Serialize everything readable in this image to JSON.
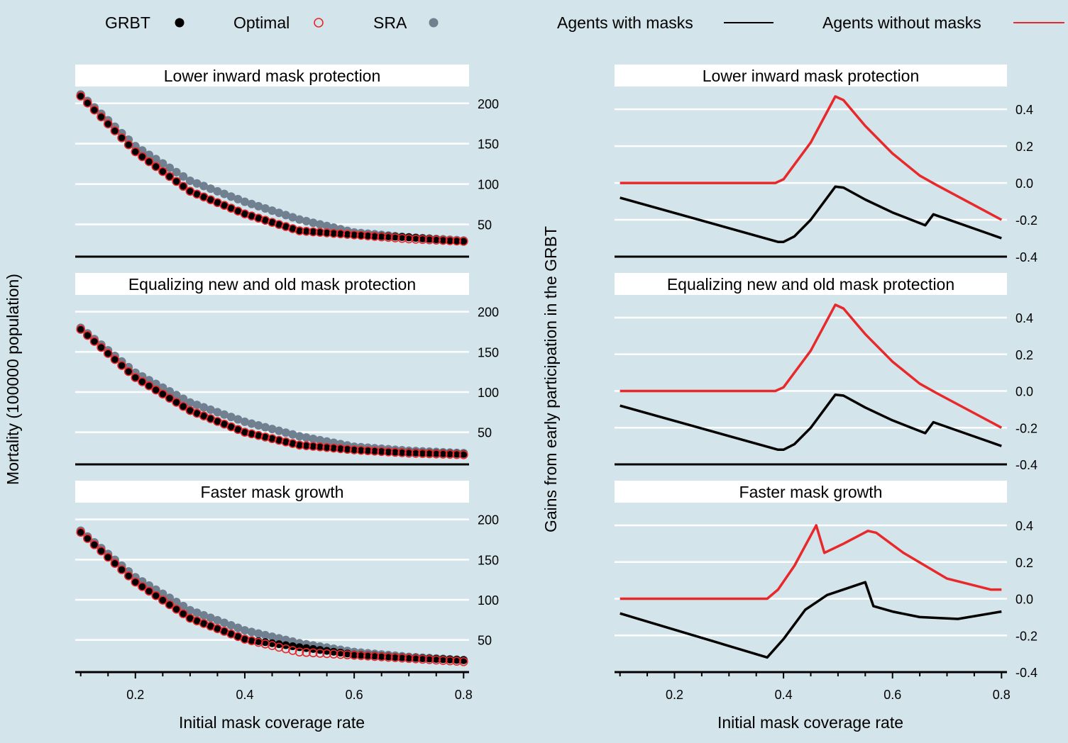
{
  "legend_left": [
    {
      "label": "GRBT",
      "color": "#000000",
      "marker": "filled-circle"
    },
    {
      "label": "Optimal",
      "color": "#e8292b",
      "marker": "open-circle"
    },
    {
      "label": "SRA",
      "color": "#708090",
      "marker": "filled-circle"
    }
  ],
  "legend_right": [
    {
      "label": "Agents with masks",
      "color": "#000000",
      "marker": "line"
    },
    {
      "label": "Agents without masks",
      "color": "#e8292b",
      "marker": "line"
    }
  ],
  "left_ylabel": "Mortality (100000 population)",
  "right_ylabel": "Gains from early participation in the GRBT",
  "xlabel": "Initial mask coverage rate",
  "chart_data": [
    {
      "type": "scatter",
      "panel": "left-1",
      "title": "Lower inward mask protection",
      "xlim": [
        0.09,
        0.81
      ],
      "ylim": [
        10,
        220
      ],
      "yticks": [
        50,
        100,
        150,
        200
      ],
      "xticks": [
        0.2,
        0.4,
        0.6,
        0.8
      ],
      "xticklabels": [
        "0.2",
        "0.4",
        "0.6",
        "0.8"
      ],
      "show_xaxis": false,
      "series": [
        {
          "name": "GRBT",
          "color": "#000000",
          "marker": "filled",
          "x": [
            0.1,
            0.2,
            0.3,
            0.4,
            0.5,
            0.6,
            0.7,
            0.8
          ],
          "y": [
            209,
            140,
            91,
            63,
            42,
            37,
            34,
            29
          ]
        },
        {
          "name": "Optimal",
          "color": "#e8292b",
          "marker": "open",
          "x": [
            0.1,
            0.2,
            0.3,
            0.4,
            0.5,
            0.6,
            0.7,
            0.8
          ],
          "y": [
            209,
            140,
            91,
            63,
            42,
            37,
            32,
            29
          ]
        },
        {
          "name": "SRA",
          "color": "#708090",
          "marker": "filled",
          "x": [
            0.1,
            0.2,
            0.3,
            0.4,
            0.5,
            0.6,
            0.7,
            0.8
          ],
          "y": [
            211,
            147,
            104,
            78,
            56,
            40,
            34,
            30
          ]
        }
      ]
    },
    {
      "type": "scatter",
      "panel": "left-2",
      "title": "Equalizing new and old mask protection",
      "xlim": [
        0.09,
        0.81
      ],
      "ylim": [
        10,
        220
      ],
      "yticks": [
        50,
        100,
        150,
        200
      ],
      "xticks": [
        0.2,
        0.4,
        0.6,
        0.8
      ],
      "xticklabels": [
        "0.2",
        "0.4",
        "0.6",
        "0.8"
      ],
      "show_xaxis": false,
      "series": [
        {
          "name": "GRBT",
          "color": "#000000",
          "marker": "filled",
          "x": [
            0.1,
            0.2,
            0.3,
            0.4,
            0.5,
            0.6,
            0.7,
            0.8
          ],
          "y": [
            178,
            118,
            77,
            50,
            34,
            28,
            25,
            23
          ]
        },
        {
          "name": "Optimal",
          "color": "#e8292b",
          "marker": "open",
          "x": [
            0.1,
            0.2,
            0.3,
            0.4,
            0.5,
            0.6,
            0.7,
            0.8
          ],
          "y": [
            178,
            118,
            77,
            50,
            34,
            28,
            24,
            22
          ]
        },
        {
          "name": "SRA",
          "color": "#708090",
          "marker": "filled",
          "x": [
            0.1,
            0.2,
            0.3,
            0.4,
            0.5,
            0.6,
            0.7,
            0.8
          ],
          "y": [
            180,
            124,
            87,
            63,
            45,
            32,
            27,
            24
          ]
        }
      ]
    },
    {
      "type": "scatter",
      "panel": "left-3",
      "title": "Faster mask growth",
      "xlim": [
        0.09,
        0.81
      ],
      "ylim": [
        10,
        220
      ],
      "yticks": [
        50,
        100,
        150,
        200
      ],
      "xticks": [
        0.2,
        0.4,
        0.6,
        0.8
      ],
      "xticklabels": [
        "0.2",
        "0.4",
        "0.6",
        "0.8"
      ],
      "show_xaxis": true,
      "series": [
        {
          "name": "GRBT",
          "color": "#000000",
          "marker": "filled",
          "x": [
            0.1,
            0.2,
            0.3,
            0.4,
            0.5,
            0.6,
            0.7,
            0.8
          ],
          "y": [
            184,
            122,
            77,
            51,
            41,
            32,
            28,
            25
          ]
        },
        {
          "name": "Optimal",
          "color": "#e8292b",
          "marker": "open",
          "x": [
            0.1,
            0.2,
            0.3,
            0.4,
            0.5,
            0.6,
            0.7,
            0.8
          ],
          "y": [
            184,
            122,
            77,
            51,
            35,
            31,
            27,
            23
          ]
        },
        {
          "name": "SRA",
          "color": "#708090",
          "marker": "filled",
          "x": [
            0.1,
            0.2,
            0.3,
            0.4,
            0.5,
            0.6,
            0.7,
            0.8
          ],
          "y": [
            186,
            128,
            87,
            62,
            46,
            35,
            29,
            25
          ]
        }
      ]
    },
    {
      "type": "line",
      "panel": "right-1",
      "title": "Lower inward mask protection",
      "xlim": [
        0.09,
        0.81
      ],
      "ylim": [
        -0.4,
        0.52
      ],
      "yticks": [
        -0.4,
        -0.2,
        0.0,
        0.2,
        0.4
      ],
      "xticks": [
        0.2,
        0.4,
        0.6,
        0.8
      ],
      "yticklabels": [
        "-0.4",
        "-0.2",
        "0.0",
        "0.2",
        "0.4"
      ],
      "xticklabels": [
        "0.2",
        "0.4",
        "0.6",
        "0.8"
      ],
      "show_xaxis": false,
      "series": [
        {
          "name": "Agents with masks",
          "color": "#000000",
          "x": [
            0.1,
            0.39,
            0.4,
            0.42,
            0.45,
            0.495,
            0.51,
            0.55,
            0.6,
            0.66,
            0.675,
            0.8
          ],
          "y": [
            -0.08,
            -0.32,
            -0.32,
            -0.29,
            -0.2,
            -0.02,
            -0.025,
            -0.09,
            -0.16,
            -0.23,
            -0.17,
            -0.3
          ]
        },
        {
          "name": "Agents without masks",
          "color": "#e8292b",
          "x": [
            0.1,
            0.385,
            0.4,
            0.45,
            0.495,
            0.51,
            0.55,
            0.6,
            0.65,
            0.68,
            0.8
          ],
          "y": [
            0.0,
            0.0,
            0.02,
            0.22,
            0.47,
            0.45,
            0.31,
            0.16,
            0.04,
            -0.01,
            -0.2
          ]
        }
      ]
    },
    {
      "type": "line",
      "panel": "right-2",
      "title": "Equalizing new and old mask protection",
      "xlim": [
        0.09,
        0.81
      ],
      "ylim": [
        -0.4,
        0.52
      ],
      "yticks": [
        -0.4,
        -0.2,
        0.0,
        0.2,
        0.4
      ],
      "xticks": [
        0.2,
        0.4,
        0.6,
        0.8
      ],
      "yticklabels": [
        "-0.4",
        "-0.2",
        "0.0",
        "0.2",
        "0.4"
      ],
      "xticklabels": [
        "0.2",
        "0.4",
        "0.6",
        "0.8"
      ],
      "show_xaxis": false,
      "series": [
        {
          "name": "Agents with masks",
          "color": "#000000",
          "x": [
            0.1,
            0.39,
            0.4,
            0.42,
            0.45,
            0.495,
            0.51,
            0.55,
            0.6,
            0.66,
            0.675,
            0.8
          ],
          "y": [
            -0.08,
            -0.32,
            -0.32,
            -0.29,
            -0.2,
            -0.02,
            -0.025,
            -0.09,
            -0.16,
            -0.23,
            -0.17,
            -0.3
          ]
        },
        {
          "name": "Agents without masks",
          "color": "#e8292b",
          "x": [
            0.1,
            0.385,
            0.4,
            0.45,
            0.495,
            0.51,
            0.55,
            0.6,
            0.65,
            0.68,
            0.8
          ],
          "y": [
            0.0,
            0.0,
            0.02,
            0.22,
            0.47,
            0.45,
            0.31,
            0.16,
            0.04,
            -0.01,
            -0.2
          ]
        }
      ]
    },
    {
      "type": "line",
      "panel": "right-3",
      "title": "Faster mask growth",
      "xlim": [
        0.09,
        0.81
      ],
      "ylim": [
        -0.4,
        0.52
      ],
      "yticks": [
        -0.4,
        -0.2,
        0.0,
        0.2,
        0.4
      ],
      "xticks": [
        0.2,
        0.4,
        0.6,
        0.8
      ],
      "yticklabels": [
        "-0.4",
        "-0.2",
        "0.0",
        "0.2",
        "0.4"
      ],
      "xticklabels": [
        "0.2",
        "0.4",
        "0.6",
        "0.8"
      ],
      "show_xaxis": true,
      "series": [
        {
          "name": "Agents with masks",
          "color": "#000000",
          "x": [
            0.1,
            0.37,
            0.4,
            0.44,
            0.46,
            0.48,
            0.55,
            0.565,
            0.6,
            0.65,
            0.72,
            0.8
          ],
          "y": [
            -0.08,
            -0.32,
            -0.22,
            -0.06,
            -0.02,
            0.02,
            0.09,
            -0.04,
            -0.07,
            -0.1,
            -0.11,
            -0.07
          ]
        },
        {
          "name": "Agents without masks",
          "color": "#e8292b",
          "x": [
            0.1,
            0.37,
            0.39,
            0.42,
            0.46,
            0.475,
            0.51,
            0.555,
            0.57,
            0.62,
            0.7,
            0.78,
            0.8
          ],
          "y": [
            0.0,
            0.0,
            0.05,
            0.18,
            0.4,
            0.25,
            0.3,
            0.37,
            0.36,
            0.25,
            0.11,
            0.05,
            0.05
          ]
        }
      ]
    }
  ]
}
